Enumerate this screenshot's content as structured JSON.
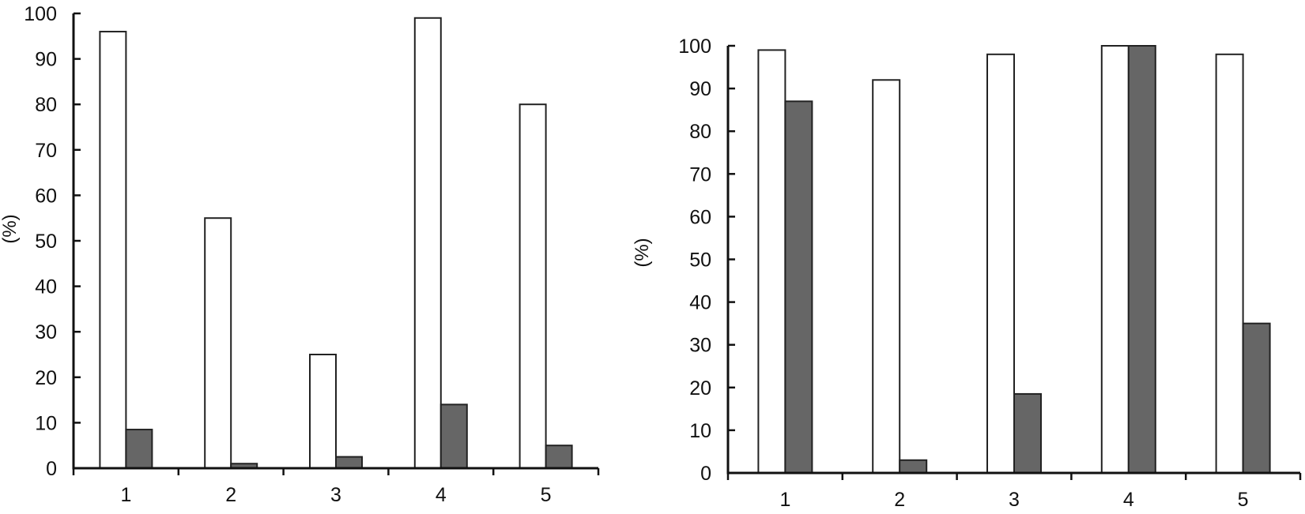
{
  "chart_data": [
    {
      "type": "bar",
      "title": "",
      "xlabel": "",
      "ylabel": "(%)",
      "categories": [
        "1",
        "2",
        "3",
        "4",
        "5"
      ],
      "ylim": [
        0,
        100
      ],
      "yticks": [
        0,
        10,
        20,
        30,
        40,
        50,
        60,
        70,
        80,
        90,
        100
      ],
      "grid": false,
      "legend": null,
      "series": [
        {
          "name": "series-white",
          "color": "#ffffff",
          "values": [
            96,
            55,
            25,
            99,
            80
          ]
        },
        {
          "name": "series-grey",
          "color": "#666666",
          "values": [
            8.5,
            1,
            2.5,
            14,
            5
          ]
        }
      ]
    },
    {
      "type": "bar",
      "title": "",
      "xlabel": "",
      "ylabel": "(%)",
      "categories": [
        "1",
        "2",
        "3",
        "4",
        "5"
      ],
      "ylim": [
        0,
        100
      ],
      "yticks": [
        0,
        10,
        20,
        30,
        40,
        50,
        60,
        70,
        80,
        90,
        100
      ],
      "grid": false,
      "legend": null,
      "series": [
        {
          "name": "series-white",
          "color": "#ffffff",
          "values": [
            99,
            92,
            98,
            100,
            98
          ]
        },
        {
          "name": "series-grey",
          "color": "#666666",
          "values": [
            87,
            3,
            18.5,
            100,
            35
          ]
        }
      ]
    }
  ],
  "charts": [
    {
      "ylabel": "(%)"
    },
    {
      "ylabel": "(%)"
    }
  ]
}
